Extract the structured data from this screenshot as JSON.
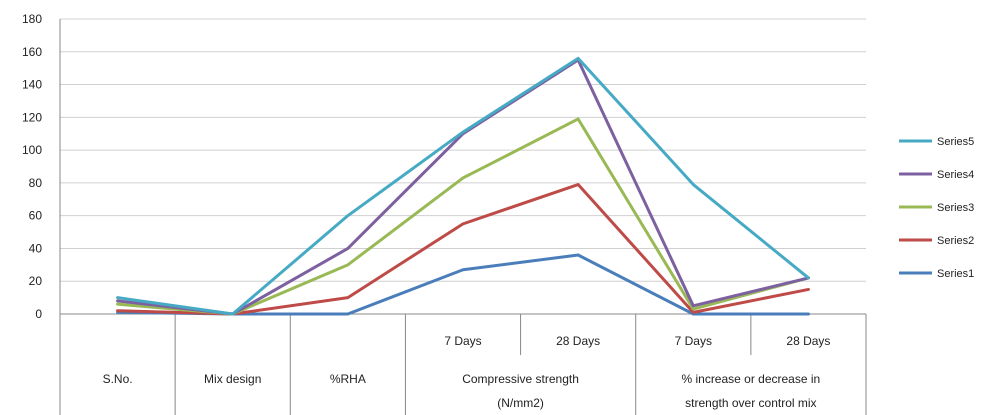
{
  "chart_data": {
    "type": "line",
    "categories": [
      "S.No.",
      "Mix design",
      "%RHA",
      "7 Days",
      "28 Days",
      "7 Days",
      "28 Days"
    ],
    "category_groups": [
      {
        "label": "Compressive strength (N/mm2)",
        "lines": [
          "Compressive strength",
          "(N/mm2)"
        ],
        "members": [
          "7 Days",
          "28 Days"
        ]
      },
      {
        "label": "% increase or decrease in strength over control mix",
        "lines": [
          "% increase or decrease in",
          "strength over control mix"
        ],
        "members": [
          "7 Days",
          "28 Days"
        ]
      }
    ],
    "ylim": [
      0,
      180
    ],
    "yticks": [
      0,
      20,
      40,
      60,
      80,
      100,
      120,
      140,
      160,
      180
    ],
    "grid": true,
    "legend_position": "right",
    "series": [
      {
        "name": "Series1",
        "color": "#4a7ebb",
        "values": [
          1,
          0,
          0,
          27,
          36,
          0,
          0
        ]
      },
      {
        "name": "Series2",
        "color": "#be4b48",
        "values": [
          2,
          0,
          10,
          55,
          79,
          1,
          15
        ]
      },
      {
        "name": "Series3",
        "color": "#98b954",
        "values": [
          6,
          0,
          30,
          83,
          119,
          3,
          22
        ]
      },
      {
        "name": "Series4",
        "color": "#7d60a0",
        "values": [
          8,
          0,
          40,
          110,
          155,
          5,
          22
        ]
      },
      {
        "name": "Series5",
        "color": "#46aac5",
        "values": [
          10,
          0,
          60,
          111,
          156,
          79,
          22
        ]
      }
    ]
  }
}
